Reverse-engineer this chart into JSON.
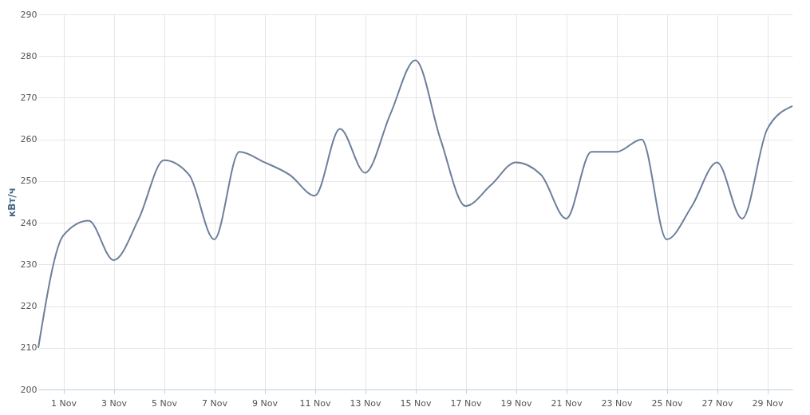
{
  "chart_data": {
    "type": "line",
    "ylabel": "кВт/ч",
    "x": [
      "--10-31",
      "--11-01",
      "--11-02",
      "--11-03",
      "--11-04",
      "--11-05",
      "--11-06",
      "--11-07",
      "--11-08",
      "--11-09",
      "--11-10",
      "--11-11",
      "--11-12",
      "--11-13",
      "--11-14",
      "--11-15",
      "--11-16",
      "--11-17",
      "--11-18",
      "--11-19",
      "--11-20",
      "--11-21",
      "--11-22",
      "--11-23",
      "--11-24",
      "--11-25",
      "--11-26",
      "--11-27",
      "--11-28",
      "--11-29",
      "--11-30"
    ],
    "series": [
      {
        "color": "#6d7f9c",
        "values": [
          210,
          237,
          240.5,
          231,
          241,
          255,
          251.5,
          236,
          257,
          254.5,
          251.5,
          246.5,
          262.5,
          252,
          266,
          279,
          260,
          244,
          249,
          254.5,
          251.5,
          241,
          257,
          257,
          260,
          236,
          244,
          254.5,
          241,
          262.5,
          268
        ]
      }
    ],
    "xlim": [
      "--10-31",
      "--11-30"
    ],
    "xticks": [
      {
        "value": "--11-01",
        "label": "1 Nov"
      },
      {
        "value": "--11-03",
        "label": "3 Nov"
      },
      {
        "value": "--11-05",
        "label": "5 Nov"
      },
      {
        "value": "--11-07",
        "label": "7 Nov"
      },
      {
        "value": "--11-09",
        "label": "9 Nov"
      },
      {
        "value": "--11-11",
        "label": "11 Nov"
      },
      {
        "value": "--11-13",
        "label": "13 Nov"
      },
      {
        "value": "--11-15",
        "label": "15 Nov"
      },
      {
        "value": "--11-17",
        "label": "17 Nov"
      },
      {
        "value": "--11-19",
        "label": "19 Nov"
      },
      {
        "value": "--11-21",
        "label": "21 Nov"
      },
      {
        "value": "--11-23",
        "label": "23 Nov"
      },
      {
        "value": "--11-25",
        "label": "25 Nov"
      },
      {
        "value": "--11-27",
        "label": "27 Nov"
      },
      {
        "value": "--11-29",
        "label": "29 Nov"
      }
    ],
    "ylim": [
      200,
      290
    ],
    "yticks": [
      200,
      210,
      220,
      230,
      240,
      250,
      260,
      270,
      280,
      290
    ],
    "grid": true,
    "marker": "none",
    "line_style": "solid"
  }
}
